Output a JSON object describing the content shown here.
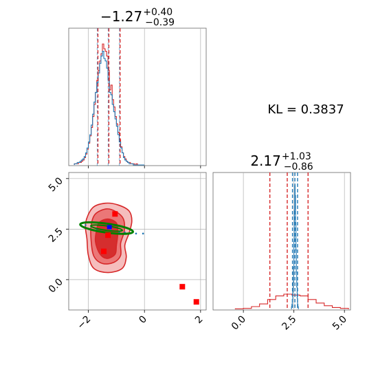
{
  "colors": {
    "primary": "#d62728",
    "secondary": "#1f77b4",
    "contour_green": "#008000",
    "marker_blue": "#0000ff",
    "marker_red": "#ff0000",
    "grid": "#b0b0b0"
  },
  "chart_data": {
    "type": "corner",
    "annotation": "KL = 0.3837",
    "parameters": [
      {
        "index": 0,
        "median": -1.27,
        "plus": 0.4,
        "minus": 0.39,
        "title_main": "−1.27",
        "title_sup": "+0.40",
        "title_sub": "−0.39",
        "range": [
          -2.7,
          2.2
        ],
        "ticks": [
          -2,
          0,
          2
        ],
        "tick_labels": [
          "−2",
          "0",
          "2"
        ],
        "quantile_lines_primary": [
          -1.66,
          -1.27,
          -0.87
        ],
        "quantile_lines_secondary": [
          -1.66,
          -1.27,
          -0.87
        ]
      },
      {
        "index": 1,
        "median": 2.17,
        "plus": 1.03,
        "minus": 0.86,
        "title_main": "2.17",
        "title_sup": "+1.03",
        "title_sub": "−0.86",
        "range": [
          -1.5,
          5.3
        ],
        "ticks": [
          0.0,
          2.5,
          5.0
        ],
        "tick_labels": [
          "0.0",
          "2.5",
          "5.0"
        ],
        "quantile_lines_primary": [
          1.31,
          2.17,
          3.2
        ],
        "quantile_lines_secondary": [
          2.43,
          2.55,
          2.68
        ]
      }
    ],
    "marginal_0": {
      "bins": [
        -2.5,
        -2.45,
        -2.4,
        -2.35,
        -2.3,
        -2.25,
        -2.2,
        -2.15,
        -2.1,
        -2.05,
        -2.0,
        -1.95,
        -1.9,
        -1.85,
        -1.8,
        -1.75,
        -1.7,
        -1.65,
        -1.6,
        -1.55,
        -1.5,
        -1.45,
        -1.4,
        -1.35,
        -1.3,
        -1.25,
        -1.2,
        -1.15,
        -1.1,
        -1.05,
        -1.0,
        -0.95,
        -0.9,
        -0.85,
        -0.8,
        -0.75,
        -0.7,
        -0.65,
        -0.6,
        -0.55,
        -0.5,
        -0.45,
        -0.4,
        -0.35,
        -0.3,
        -0.25,
        -0.2,
        -0.15,
        -0.1,
        -0.05,
        0.0
      ],
      "series": [
        {
          "name": "primary",
          "color": "#d62728",
          "values": [
            1,
            1,
            1,
            2,
            2,
            3,
            4,
            6,
            9,
            13,
            18,
            24,
            31,
            40,
            50,
            60,
            70,
            78,
            86,
            92,
            100,
            96,
            94,
            90,
            78,
            62,
            66,
            54,
            48,
            40,
            34,
            27,
            21,
            15,
            10,
            7,
            5,
            3,
            2,
            2,
            1,
            1,
            1,
            0,
            1,
            0,
            0,
            0,
            0,
            0
          ]
        },
        {
          "name": "secondary",
          "color": "#1f77b4",
          "values": [
            1,
            1,
            2,
            2,
            3,
            4,
            5,
            7,
            10,
            14,
            19,
            25,
            33,
            42,
            52,
            60,
            68,
            76,
            84,
            90,
            94,
            88,
            86,
            80,
            70,
            60,
            58,
            50,
            44,
            38,
            32,
            25,
            19,
            14,
            10,
            6,
            4,
            3,
            2,
            1,
            1,
            1,
            0,
            0,
            0,
            0,
            0,
            0,
            0,
            0
          ]
        }
      ]
    },
    "marginal_1": {
      "primary_bins": [
        -0.4,
        0.0,
        0.4,
        0.8,
        1.2,
        1.6,
        2.0,
        2.4,
        2.8,
        3.2,
        3.6,
        4.0,
        4.4,
        4.8,
        5.2
      ],
      "primary_values": [
        1,
        2,
        6,
        12,
        22,
        30,
        34,
        32,
        30,
        22,
        14,
        8,
        4,
        2
      ],
      "secondary_bins": [
        2.38,
        2.4,
        2.42,
        2.44,
        2.46,
        2.48,
        2.5,
        2.52,
        2.54,
        2.56,
        2.58,
        2.6,
        2.62,
        2.64,
        2.66,
        2.68,
        2.7,
        2.72
      ],
      "secondary_values": [
        2,
        4,
        8,
        14,
        22,
        34,
        55,
        80,
        100,
        92,
        70,
        48,
        30,
        18,
        9,
        4,
        2
      ]
    },
    "joint": {
      "contours_primary": [
        {
          "level": "outer",
          "fill": "#f4b6b6",
          "opacity": 0.9,
          "points": [
            [
              -1.85,
              3.55
            ],
            [
              -1.4,
              3.78
            ],
            [
              -0.95,
              3.7
            ],
            [
              -0.55,
              3.4
            ],
            [
              -0.45,
              2.9
            ],
            [
              -0.55,
              2.3
            ],
            [
              -0.7,
              1.7
            ],
            [
              -0.65,
              1.1
            ],
            [
              -0.8,
              0.55
            ],
            [
              -1.3,
              0.35
            ],
            [
              -1.8,
              0.55
            ],
            [
              -2.0,
              1.2
            ],
            [
              -2.05,
              2.0
            ],
            [
              -2.1,
              2.8
            ]
          ]
        },
        {
          "level": "mid",
          "fill": "#ea7373",
          "opacity": 0.95,
          "points": [
            [
              -1.75,
              3.25
            ],
            [
              -1.35,
              3.5
            ],
            [
              -1.0,
              3.35
            ],
            [
              -0.75,
              3.0
            ],
            [
              -0.72,
              2.4
            ],
            [
              -0.85,
              1.8
            ],
            [
              -0.85,
              1.2
            ],
            [
              -1.1,
              0.85
            ],
            [
              -1.5,
              0.8
            ],
            [
              -1.8,
              1.15
            ],
            [
              -1.9,
              1.9
            ],
            [
              -1.9,
              2.7
            ]
          ]
        },
        {
          "level": "inner",
          "fill": "#d42a2a",
          "opacity": 0.95,
          "points": [
            [
              -1.6,
              2.85
            ],
            [
              -1.3,
              3.0
            ],
            [
              -1.0,
              2.8
            ],
            [
              -0.95,
              2.3
            ],
            [
              -1.0,
              1.7
            ],
            [
              -1.05,
              1.25
            ],
            [
              -1.35,
              1.05
            ],
            [
              -1.6,
              1.3
            ],
            [
              -1.75,
              1.9
            ],
            [
              -1.7,
              2.5
            ]
          ]
        }
      ],
      "contour_secondary": {
        "color": "#008000",
        "center": [
          -1.35,
          2.55
        ],
        "semi_axes": [
          0.95,
          0.22
        ],
        "rotation_deg": -8
      },
      "scatter_secondary": [
        [
          -1.55,
          2.4
        ],
        [
          -1.2,
          2.45
        ],
        [
          -0.9,
          2.35
        ],
        [
          -0.55,
          2.3
        ],
        [
          -0.3,
          2.28
        ],
        [
          -0.05,
          2.28
        ],
        [
          -1.9,
          2.62
        ],
        [
          -2.1,
          2.7
        ],
        [
          -1.7,
          2.5
        ],
        [
          -0.7,
          2.33
        ]
      ],
      "markers_red": [
        [
          -1.05,
          3.25
        ],
        [
          -1.3,
          2.2
        ],
        [
          -1.45,
          1.4
        ],
        [
          1.35,
          -0.35
        ],
        [
          1.85,
          -1.1
        ]
      ],
      "markers_blue": [
        [
          -1.25,
          2.6
        ]
      ]
    }
  }
}
